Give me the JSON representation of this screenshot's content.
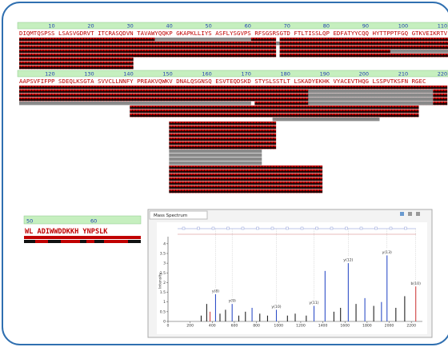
{
  "coverage": {
    "ruler_1": [
      10,
      20,
      30,
      40,
      50,
      60,
      70,
      80,
      90,
      100,
      110
    ],
    "sequence_1": [
      "DIQMTQSPSS",
      "LSASVGDRVT",
      "ITCRASQDVN",
      "TAVAWYQQKP",
      "GKAPKLLIYS",
      "ASFLYSGVPS",
      "RFSGSRSGTD",
      "FTLTISSLQP",
      "EDFATYYCQQ",
      "HYTTPPTFGQ",
      "GTKVEIKRTV"
    ],
    "ruler_2": [
      120,
      130,
      140,
      150,
      160,
      170,
      180,
      190,
      200,
      210,
      220
    ],
    "sequence_2": [
      "AAPSVFIFPP",
      "SDEQLKSGTA",
      "SVVCLLNNFY",
      "PREAKVQWKV",
      "DNALQSGNSQ",
      "ESVTEQDSKD",
      "STYSLSSTLT",
      "LSKADYEKHK",
      "VYACEVTHQG",
      "LSSPVTKSFN",
      "RGEC"
    ]
  },
  "zoom": {
    "ruler": [
      50,
      60
    ],
    "sequence": "WL  ADIWWDDKKH  YNPSLK"
  },
  "chart_data": {
    "type": "stem",
    "title": "Mass Spectrum",
    "y_label": "Intensity",
    "xlim": [
      0,
      2300
    ],
    "xticks": [
      0,
      200,
      400,
      600,
      800,
      1000,
      1200,
      1400,
      1600,
      1800,
      2000,
      2200
    ],
    "ylim": [
      0,
      4.2
    ],
    "yticks": [
      0,
      0.5,
      1,
      1.5,
      2,
      2.5,
      3,
      3.5,
      4
    ],
    "peaks": [
      {
        "x": 300,
        "y": 0.3,
        "color": "#222222"
      },
      {
        "x": 350,
        "y": 0.9,
        "color": "#222222"
      },
      {
        "x": 380,
        "y": 0.5,
        "color": "#d04040"
      },
      {
        "x": 430,
        "y": 1.4,
        "color": "#3050c8",
        "label": "y(8)"
      },
      {
        "x": 470,
        "y": 0.4,
        "color": "#222222"
      },
      {
        "x": 520,
        "y": 0.6,
        "color": "#222222"
      },
      {
        "x": 580,
        "y": 0.9,
        "color": "#3050c8",
        "label": "y(9)"
      },
      {
        "x": 640,
        "y": 0.3,
        "color": "#222222"
      },
      {
        "x": 700,
        "y": 0.5,
        "color": "#222222"
      },
      {
        "x": 760,
        "y": 0.7,
        "color": "#3050c8"
      },
      {
        "x": 830,
        "y": 0.4,
        "color": "#222222"
      },
      {
        "x": 900,
        "y": 0.3,
        "color": "#222222"
      },
      {
        "x": 980,
        "y": 0.6,
        "color": "#3050c8",
        "label": "y(10)"
      },
      {
        "x": 1080,
        "y": 0.3,
        "color": "#222222"
      },
      {
        "x": 1150,
        "y": 0.4,
        "color": "#222222"
      },
      {
        "x": 1250,
        "y": 0.3,
        "color": "#222222"
      },
      {
        "x": 1320,
        "y": 0.8,
        "color": "#3050c8",
        "label": "y(11)"
      },
      {
        "x": 1420,
        "y": 2.6,
        "color": "#3050c8"
      },
      {
        "x": 1500,
        "y": 0.5,
        "color": "#222222"
      },
      {
        "x": 1560,
        "y": 0.7,
        "color": "#222222"
      },
      {
        "x": 1630,
        "y": 3.0,
        "color": "#3050c8",
        "label": "y(12)"
      },
      {
        "x": 1700,
        "y": 0.9,
        "color": "#222222"
      },
      {
        "x": 1780,
        "y": 1.2,
        "color": "#3050c8"
      },
      {
        "x": 1860,
        "y": 0.8,
        "color": "#222222"
      },
      {
        "x": 1930,
        "y": 1.0,
        "color": "#3050c8"
      },
      {
        "x": 1980,
        "y": 3.4,
        "color": "#3050c8",
        "label": "y(13)"
      },
      {
        "x": 2060,
        "y": 0.7,
        "color": "#222222"
      },
      {
        "x": 2140,
        "y": 1.3,
        "color": "#222222"
      },
      {
        "x": 2240,
        "y": 1.8,
        "color": "#d04040",
        "label": "b(10)"
      }
    ]
  }
}
